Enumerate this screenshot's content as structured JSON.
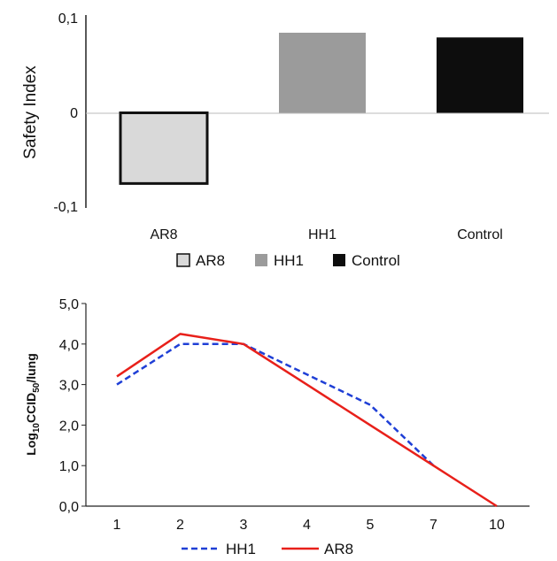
{
  "chart_data": [
    {
      "type": "bar",
      "categories": [
        "AR8",
        "HH1",
        "Control"
      ],
      "series": [
        {
          "name": "AR8",
          "values": [
            -0.075,
            null,
            null
          ]
        },
        {
          "name": "HH1",
          "values": [
            null,
            0.085,
            null
          ]
        },
        {
          "name": "Control",
          "values": [
            null,
            null,
            0.08
          ]
        }
      ],
      "values": [
        -0.075,
        0.085,
        0.08
      ],
      "ylabel": "Safety Index",
      "ylim": [
        -0.1,
        0.1
      ],
      "yticks": [
        "0,1",
        "0",
        "-0,1"
      ],
      "colors": [
        "#d9d9d9",
        "#9b9b9b",
        "#0d0d0d"
      ],
      "legend": "bottom",
      "grid": false
    },
    {
      "type": "line",
      "x": [
        "1",
        "2",
        "3",
        "4",
        "5",
        "7",
        "10"
      ],
      "series": [
        {
          "name": "HH1",
          "values": [
            3.0,
            4.0,
            4.0,
            3.25,
            2.5,
            1.0,
            null
          ],
          "color": "#1f3fd6",
          "dash": "dashed"
        },
        {
          "name": "AR8",
          "values": [
            3.2,
            4.25,
            4.0,
            3.0,
            2.0,
            1.0,
            0.0
          ],
          "color": "#e8201a",
          "dash": "solid"
        }
      ],
      "ylabel_main": "Log",
      "ylabel_sub10": "10",
      "ylabel_mid": "CCID",
      "ylabel_sub50": "50",
      "ylabel_end": "/lung",
      "ylim": [
        0,
        5
      ],
      "yticks": [
        "0,0",
        "1,0",
        "2,0",
        "3,0",
        "4,0",
        "5,0"
      ],
      "legend": "bottom",
      "grid": false
    }
  ]
}
